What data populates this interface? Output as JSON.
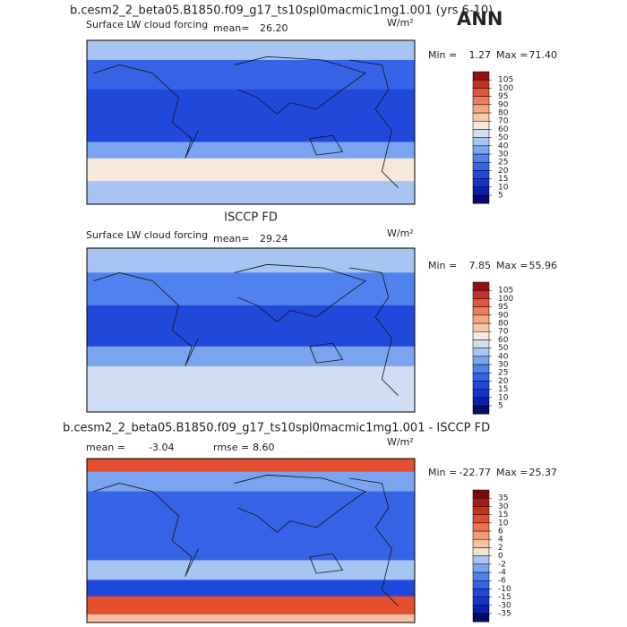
{
  "header": {
    "title": "b.cesm2_2_beta05.B1850.f09_g17_ts10spl0macmic1mg1.001 (yrs 6-10)",
    "season": "ANN"
  },
  "panels": [
    {
      "variable": "Surface LW cloud forcing",
      "units": "W/m²",
      "stat1_label": "mean=",
      "stat1": {
        "value": 26.2,
        "label": "26.20"
      },
      "min_label": "Min =",
      "min": 1.27,
      "max_label": "Max =",
      "max": {
        "value": 71.4,
        "label": "71.40"
      },
      "levels": [
        5,
        10,
        15,
        20,
        25,
        30,
        40,
        50,
        60,
        70,
        80,
        90,
        95,
        100,
        105
      ],
      "colors": [
        "#08086b",
        "#0b1fa8",
        "#1634c8",
        "#2049dc",
        "#3564e6",
        "#4f82ec",
        "#7aa4f0",
        "#a7c4f2",
        "#d0def4",
        "#f5e8dc",
        "#f7c9aa",
        "#f4a583",
        "#ee7d5d",
        "#e2553b",
        "#c43022",
        "#8f1212"
      ]
    },
    {
      "title": "ISCCP FD",
      "variable": "Surface LW cloud forcing",
      "units": "W/m²",
      "stat1_label": "mean=",
      "stat1": 29.24,
      "min_label": "Min =",
      "min": 7.85,
      "max_label": "Max =",
      "max": 55.96,
      "levels": [
        5,
        10,
        15,
        20,
        25,
        30,
        40,
        50,
        60,
        70,
        80,
        90,
        95,
        100,
        105
      ],
      "colors": [
        "#08086b",
        "#0b1fa8",
        "#1634c8",
        "#2049dc",
        "#3564e6",
        "#4f82ec",
        "#7aa4f0",
        "#a7c4f2",
        "#d0def4",
        "#f5e8dc",
        "#f7c9aa",
        "#f4a583",
        "#ee7d5d",
        "#e2553b",
        "#c43022",
        "#8f1212"
      ]
    },
    {
      "title": "b.cesm2_2_beta05.B1850.f09_g17_ts10spl0macmic1mg1.001 - ISCCP FD",
      "units": "W/m²",
      "stat1_label": "mean =",
      "stat1": -3.04,
      "stat2_label": "rmse =",
      "stat2": {
        "value": 8.6,
        "label": "8.60"
      },
      "min_label": "Min =",
      "min": -22.77,
      "max_label": "Max =",
      "max": 25.37,
      "levels": [
        -35,
        -30,
        -15,
        -10,
        -6,
        -4,
        -2,
        0,
        2,
        4,
        6,
        10,
        15,
        30,
        35
      ],
      "colors": [
        "#08086b",
        "#0b1fa8",
        "#1634c8",
        "#2049dc",
        "#3564e6",
        "#4f82ec",
        "#7aa4f0",
        "#a7c4f2",
        "#f5e0d4",
        "#f7c0a0",
        "#f49a78",
        "#ee7350",
        "#e24e2e",
        "#c83218",
        "#a81e0e",
        "#7a0a0a"
      ]
    }
  ]
}
